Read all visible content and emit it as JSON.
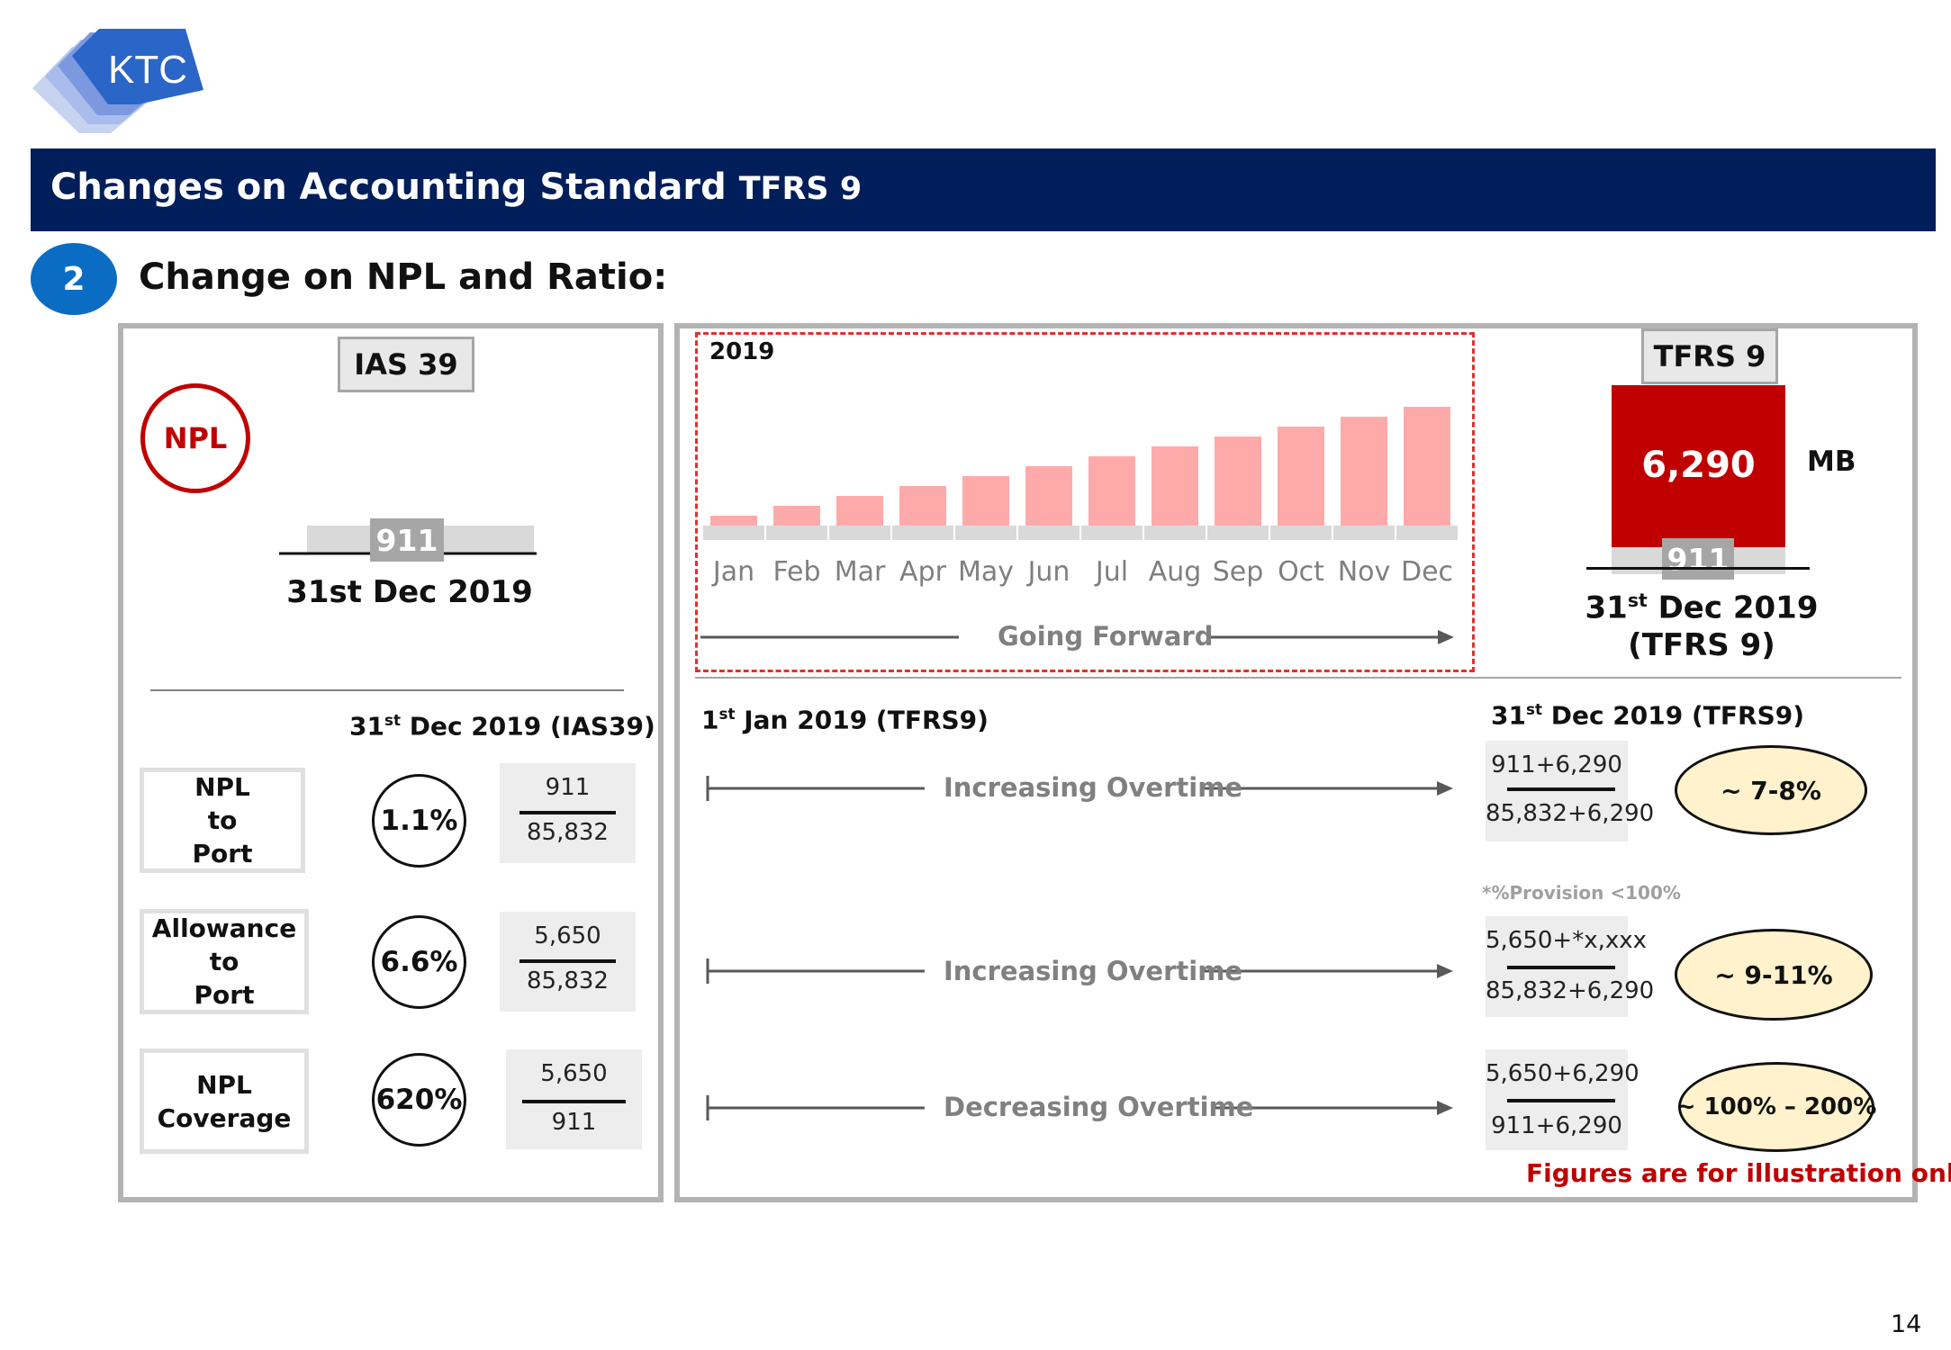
{
  "logo": {
    "text": "KTC"
  },
  "header": {
    "title": "Changes on Accounting Standard",
    "title_suffix": "TFRS 9"
  },
  "section": {
    "number": "2",
    "title": "Change on NPL and Ratio:"
  },
  "left": {
    "tag": "IAS 39",
    "npl_badge": "NPL",
    "npl_value": "911",
    "date": "31st Dec 2019",
    "col_head_sup": "st",
    "col_head_pre": "31",
    "col_head_post": " Dec 2019 (IAS39)",
    "rows": [
      {
        "label": [
          "NPL",
          "to",
          "Port"
        ],
        "ratio": "1.1%",
        "num": "911",
        "den": "85,832"
      },
      {
        "label": [
          "Allowance",
          "to",
          "Port"
        ],
        "ratio": "6.6%",
        "num": "5,650",
        "den": "85,832"
      },
      {
        "label": [
          "NPL",
          "Coverage"
        ],
        "ratio": "620%",
        "num": "5,650",
        "den": "911"
      }
    ]
  },
  "right": {
    "year_label": "2019",
    "going_forward": "Going Forward",
    "tag": "TFRS 9",
    "bar_value": "6,290",
    "unit": "MB",
    "bar_base": "911",
    "date_pre": "31",
    "date_sup": "st",
    "date_post": " Dec 2019",
    "date_line2": "(TFRS 9)",
    "start_pre": "1",
    "start_sup": "st",
    "start_post": " Jan 2019 (TFRS9)",
    "end_pre": "31",
    "end_sup": "st",
    "end_post": " Dec 2019 (TFRS9)",
    "rows": [
      {
        "trend": "Increasing Overtime",
        "num": "911+6,290",
        "den": "85,832+6,290",
        "result": "~ 7-8%"
      },
      {
        "trend": "Increasing Overtime",
        "num": "5,650+*x,xxx",
        "den": "85,832+6,290",
        "result": "~ 9-11%"
      },
      {
        "trend": "Decreasing Overtime",
        "num": "5,650+6,290",
        "den": "911+6,290",
        "result": "~ 100% – 200%"
      }
    ],
    "provision_note": "*%Provision <100%",
    "disclaimer": "Figures are for illustration only"
  },
  "chart_data": {
    "type": "bar",
    "title": "2019",
    "categories": [
      "Jan",
      "Feb",
      "Mar",
      "Apr",
      "May",
      "Jun",
      "Jul",
      "Aug",
      "Sep",
      "Oct",
      "Nov",
      "Dec"
    ],
    "series": [
      {
        "values": [
          1,
          2,
          3,
          4,
          5,
          6,
          7,
          8,
          9,
          10,
          11,
          12
        ]
      }
    ],
    "xlabel": "Going Forward",
    "ylabel": "",
    "grid": false,
    "colors": {
      "bar": "#FFAAAA",
      "base": "#D9D9D9"
    }
  },
  "page_number": "14",
  "colors": {
    "navy": "#001E5A",
    "accent_blue": "#0B6CC4",
    "red": "#C00000",
    "cream": "#FFF2CC"
  }
}
